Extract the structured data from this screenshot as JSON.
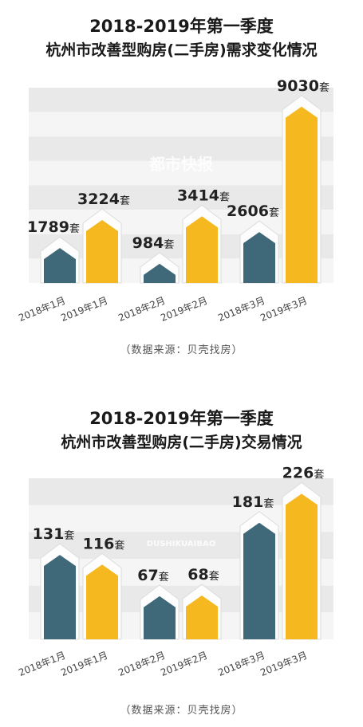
{
  "charts": [
    {
      "title_line1": "2018-2019年第一季度",
      "title_line2": "杭州市改善型购房(二手房)需求变化情况",
      "source": "（数据来源：贝壳找房）",
      "watermark": "都市快报",
      "chart_data": {
        "type": "bar",
        "categories": [
          "2018年1月",
          "2019年1月",
          "2018年2月",
          "2019年2月",
          "2018年3月",
          "2019年3月"
        ],
        "values": [
          1789,
          3224,
          984,
          3414,
          2606,
          9030
        ],
        "unit": "套",
        "ylim": [
          0,
          10000
        ],
        "colors": [
          "#3f6878",
          "#f5b81e",
          "#3f6878",
          "#f5b81e",
          "#3f6878",
          "#f5b81e"
        ]
      }
    },
    {
      "title_line1": "2018-2019年第一季度",
      "title_line2": "杭州市改善型购房(二手房)交易情况",
      "source": "（数据来源：贝壳找房）",
      "watermark": "DUSHIKUAIBAO",
      "chart_data": {
        "type": "bar",
        "categories": [
          "2018年1月",
          "2019年1月",
          "2018年2月",
          "2019年2月",
          "2018年3月",
          "2019年3月"
        ],
        "values": [
          131,
          116,
          67,
          68,
          181,
          226
        ],
        "unit": "套",
        "ylim": [
          0,
          250
        ],
        "colors": [
          "#3f6878",
          "#f5b81e",
          "#3f6878",
          "#f5b81e",
          "#3f6878",
          "#f5b81e"
        ]
      }
    }
  ]
}
